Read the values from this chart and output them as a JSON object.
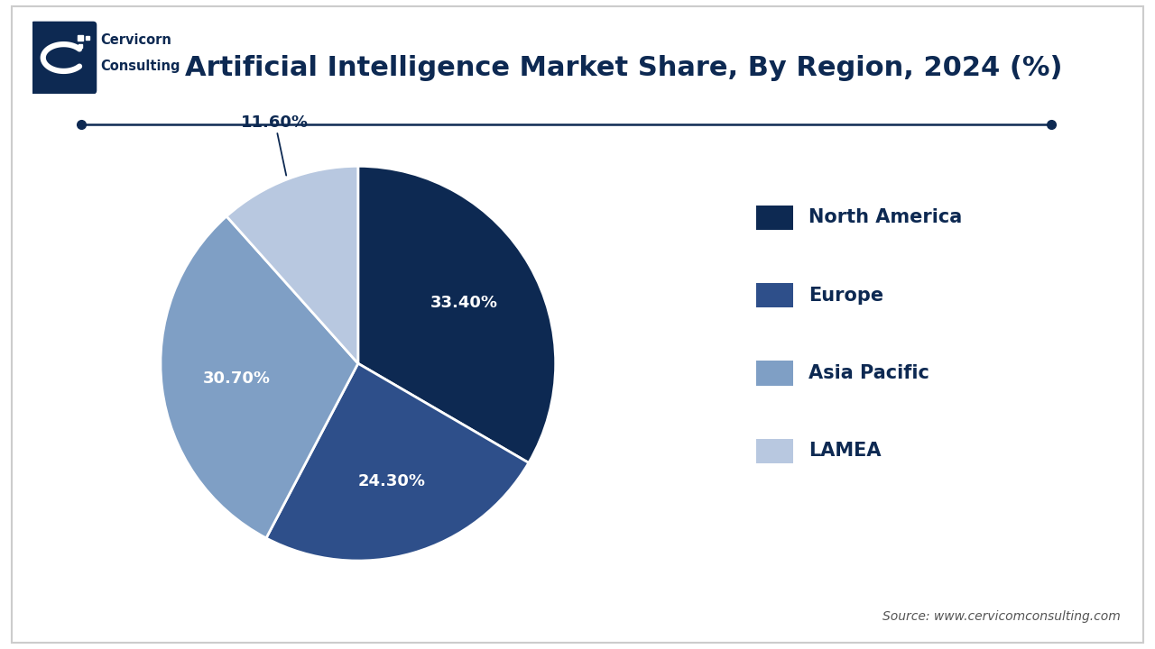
{
  "title": "Artificial Intelligence Market Share, By Region, 2024 (%)",
  "slices": [
    33.4,
    24.3,
    30.7,
    11.6
  ],
  "labels": [
    "North America",
    "Europe",
    "Asia Pacific",
    "LAMEA"
  ],
  "colors": [
    "#0d2952",
    "#2e4f8a",
    "#7f9fc5",
    "#b8c8e0"
  ],
  "pct_labels": [
    "33.40%",
    "24.30%",
    "30.70%",
    "11.60%"
  ],
  "background_color": "#ffffff",
  "title_color": "#0d2952",
  "title_fontsize": 22,
  "legend_fontsize": 15,
  "source_text": "Source: www.cervicomconsulting.com",
  "line_color": "#0d2952",
  "startangle": 90
}
